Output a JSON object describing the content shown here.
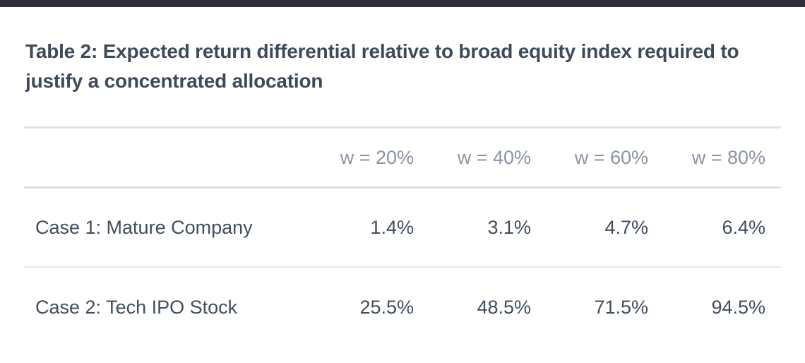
{
  "title": {
    "full": "Table 2: Expected return differential relative to broad equity index required to justify a concentrated allocation",
    "lines": [
      "Table 2: Expected return differential relative to broad equity index required to",
      "justify a concentrated allocation"
    ]
  },
  "table": {
    "column_headers": [
      "w = 20%",
      "w = 40%",
      "w = 60%",
      "w = 80%"
    ],
    "rows": [
      {
        "label": "Case 1: Mature Company",
        "values": [
          "1.4%",
          "3.1%",
          "4.7%",
          "6.4%"
        ]
      },
      {
        "label": "Case 2: Tech IPO Stock",
        "values": [
          "25.5%",
          "48.5%",
          "71.5%",
          "94.5%"
        ]
      }
    ]
  },
  "colors": {
    "background": "#ffffff",
    "top_bar": "#2d3136",
    "title_text": "#3f4a59",
    "column_header_text": "#8b94a3",
    "cell_text": "#424e5d",
    "header_rule": "#dfe1e5",
    "row_rule": "#e7e9ec"
  }
}
